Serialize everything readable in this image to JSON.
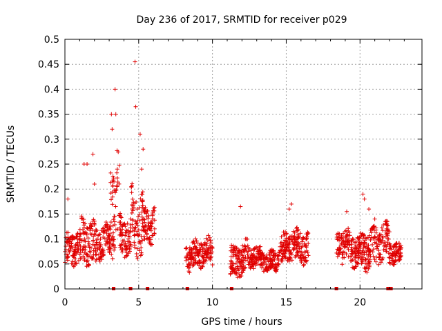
{
  "chart_data": {
    "type": "scatter",
    "title": "Day 236 of 2017, SRMTID for receiver p029",
    "xlabel": "GPS time / hours",
    "ylabel": "SRMTID / TECUs",
    "xlim": [
      0,
      24.2
    ],
    "ylim": [
      0,
      0.5
    ],
    "x_ticks": [
      0,
      5,
      10,
      15,
      20
    ],
    "x_tick_labels": [
      "0",
      "5",
      "10",
      "15",
      "20"
    ],
    "y_ticks": [
      0,
      0.05,
      0.1,
      0.15,
      0.2,
      0.25,
      0.3,
      0.35,
      0.4,
      0.45,
      0.5
    ],
    "y_tick_labels": [
      "0",
      "0.05",
      "0.1",
      "0.15",
      "0.2",
      "0.25",
      "0.3",
      "0.35",
      "0.4",
      "0.45",
      "0.5"
    ],
    "grid": true,
    "marker": "plus",
    "color": "#e00000",
    "gap_markers_x": [
      3.3,
      4.45,
      5.6,
      8.3,
      11.3,
      18.4,
      21.9,
      22.1
    ],
    "segments": [
      {
        "x_start": 0.0,
        "x_end": 1.1,
        "base": 0.075,
        "amp": 0.06
      },
      {
        "x_start": 1.1,
        "x_end": 2.2,
        "base": 0.095,
        "amp": 0.08
      },
      {
        "x_start": 2.2,
        "x_end": 3.1,
        "base": 0.1,
        "amp": 0.06
      },
      {
        "x_start": 3.1,
        "x_end": 3.7,
        "base": 0.16,
        "amp": 0.17
      },
      {
        "x_start": 3.7,
        "x_end": 4.5,
        "base": 0.1,
        "amp": 0.07
      },
      {
        "x_start": 4.5,
        "x_end": 5.3,
        "base": 0.14,
        "amp": 0.13
      },
      {
        "x_start": 5.3,
        "x_end": 6.1,
        "base": 0.13,
        "amp": 0.07
      },
      {
        "x_start": 8.2,
        "x_end": 10.0,
        "base": 0.07,
        "amp": 0.05
      },
      {
        "x_start": 11.2,
        "x_end": 12.5,
        "base": 0.06,
        "amp": 0.06
      },
      {
        "x_start": 12.5,
        "x_end": 14.5,
        "base": 0.06,
        "amp": 0.04
      },
      {
        "x_start": 14.5,
        "x_end": 16.5,
        "base": 0.08,
        "amp": 0.06
      },
      {
        "x_start": 18.4,
        "x_end": 20.0,
        "base": 0.08,
        "amp": 0.06
      },
      {
        "x_start": 20.0,
        "x_end": 22.0,
        "base": 0.085,
        "amp": 0.07
      },
      {
        "x_start": 22.0,
        "x_end": 22.8,
        "base": 0.07,
        "amp": 0.04
      }
    ],
    "peaks": [
      {
        "x": 0.2,
        "y": 0.18
      },
      {
        "x": 1.3,
        "y": 0.25
      },
      {
        "x": 1.5,
        "y": 0.25
      },
      {
        "x": 1.9,
        "y": 0.27
      },
      {
        "x": 2.0,
        "y": 0.21
      },
      {
        "x": 3.15,
        "y": 0.35
      },
      {
        "x": 3.2,
        "y": 0.32
      },
      {
        "x": 3.4,
        "y": 0.4
      },
      {
        "x": 3.45,
        "y": 0.35
      },
      {
        "x": 3.55,
        "y": 0.24
      },
      {
        "x": 4.75,
        "y": 0.455
      },
      {
        "x": 4.8,
        "y": 0.365
      },
      {
        "x": 5.1,
        "y": 0.31
      },
      {
        "x": 5.2,
        "y": 0.24
      },
      {
        "x": 5.3,
        "y": 0.28
      },
      {
        "x": 11.9,
        "y": 0.165
      },
      {
        "x": 15.2,
        "y": 0.16
      },
      {
        "x": 15.35,
        "y": 0.17
      },
      {
        "x": 20.2,
        "y": 0.19
      },
      {
        "x": 20.3,
        "y": 0.18
      },
      {
        "x": 20.6,
        "y": 0.16
      },
      {
        "x": 19.1,
        "y": 0.155
      },
      {
        "x": 21.0,
        "y": 0.14
      }
    ]
  }
}
